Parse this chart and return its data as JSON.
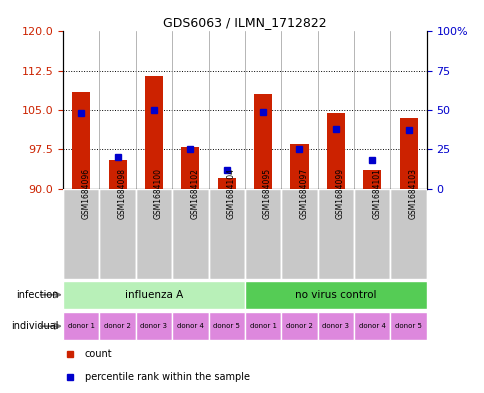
{
  "title": "GDS6063 / ILMN_1712822",
  "samples": [
    "GSM1684096",
    "GSM1684098",
    "GSM1684100",
    "GSM1684102",
    "GSM1684104",
    "GSM1684095",
    "GSM1684097",
    "GSM1684099",
    "GSM1684101",
    "GSM1684103"
  ],
  "count_values": [
    108.5,
    95.5,
    111.5,
    98.0,
    92.0,
    108.0,
    98.5,
    104.5,
    93.5,
    103.5
  ],
  "percentile_values": [
    48,
    20,
    50,
    25,
    12,
    49,
    25,
    38,
    18,
    37
  ],
  "ylim_left": [
    90,
    120
  ],
  "ylim_right": [
    0,
    100
  ],
  "yticks_left": [
    90,
    97.5,
    105,
    112.5,
    120
  ],
  "yticks_right": [
    0,
    25,
    50,
    75,
    100
  ],
  "infection_groups": [
    {
      "label": "influenza A",
      "start": 0,
      "end": 5,
      "color": "#b8f0b8"
    },
    {
      "label": "no virus control",
      "start": 5,
      "end": 10,
      "color": "#55cc55"
    }
  ],
  "individuals": [
    "donor 1",
    "donor 2",
    "donor 3",
    "donor 4",
    "donor 5",
    "donor 1",
    "donor 2",
    "donor 3",
    "donor 4",
    "donor 5"
  ],
  "individual_color": "#dd88dd",
  "bar_color": "#cc2200",
  "percentile_color": "#0000cc",
  "grid_color": "#000000",
  "sample_bg_color": "#c8c8c8",
  "left_axis_color": "#cc2200",
  "right_axis_color": "#0000cc",
  "label_color": "#555555"
}
